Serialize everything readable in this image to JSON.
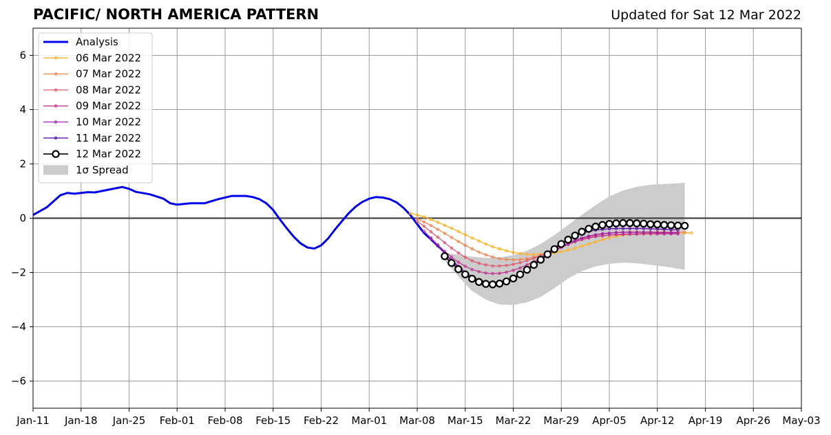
{
  "header": {
    "title": "PACIFIC/ NORTH AMERICA PATTERN",
    "updated": "Updated for Sat 12 Mar 2022"
  },
  "chart_data": {
    "type": "line",
    "title": "PACIFIC/ NORTH AMERICA PATTERN",
    "subtitle": "Updated for Sat 12 Mar 2022",
    "xlabel": "",
    "ylabel": "",
    "x_axis": {
      "type": "date",
      "start": "2022-01-11",
      "end": "2022-05-03",
      "ticks": [
        "Jan-11",
        "Jan-18",
        "Jan-25",
        "Feb-01",
        "Feb-08",
        "Feb-15",
        "Feb-22",
        "Mar-01",
        "Mar-08",
        "Mar-15",
        "Mar-22",
        "Mar-29",
        "Apr-05",
        "Apr-12",
        "Apr-19",
        "Apr-26",
        "May-03"
      ]
    },
    "ylim": [
      -7,
      7
    ],
    "yticks": [
      -6,
      -4,
      -2,
      0,
      2,
      4,
      6
    ],
    "ytick_labels": [
      "−6",
      "−4",
      "−2",
      "0",
      "2",
      "4",
      "6"
    ],
    "grid": true,
    "zero_line": true,
    "legend_position": "top-left",
    "colors": {
      "analysis": "#0000ee",
      "spread": "#cccccc",
      "grid": "#999999"
    },
    "analysis": {
      "name": "Analysis",
      "dates": [
        "2022-01-11",
        "2022-01-13",
        "2022-01-15",
        "2022-01-16",
        "2022-01-17",
        "2022-01-18",
        "2022-01-19",
        "2022-01-20",
        "2022-01-22",
        "2022-01-24",
        "2022-01-25",
        "2022-01-26",
        "2022-01-28",
        "2022-01-30",
        "2022-01-31",
        "2022-02-01",
        "2022-02-03",
        "2022-02-05",
        "2022-02-07",
        "2022-02-09",
        "2022-02-11",
        "2022-02-12",
        "2022-02-13",
        "2022-02-14",
        "2022-02-15",
        "2022-02-16",
        "2022-02-17",
        "2022-02-18",
        "2022-02-19",
        "2022-02-20",
        "2022-02-21",
        "2022-02-22",
        "2022-02-23",
        "2022-02-24",
        "2022-02-25",
        "2022-02-26",
        "2022-02-27",
        "2022-02-28",
        "2022-03-01",
        "2022-03-02",
        "2022-03-03",
        "2022-03-04",
        "2022-03-05",
        "2022-03-06",
        "2022-03-07",
        "2022-03-08",
        "2022-03-09",
        "2022-03-10",
        "2022-03-11",
        "2022-03-12"
      ],
      "values": [
        0.12,
        0.4,
        0.85,
        0.93,
        0.9,
        0.93,
        0.96,
        0.95,
        1.05,
        1.15,
        1.08,
        0.97,
        0.88,
        0.72,
        0.55,
        0.5,
        0.55,
        0.55,
        0.7,
        0.82,
        0.82,
        0.78,
        0.7,
        0.55,
        0.3,
        -0.05,
        -0.38,
        -0.68,
        -0.93,
        -1.08,
        -1.12,
        -1.0,
        -0.75,
        -0.42,
        -0.12,
        0.18,
        0.42,
        0.6,
        0.72,
        0.78,
        0.76,
        0.7,
        0.58,
        0.38,
        0.12,
        -0.22,
        -0.55,
        -0.78,
        -1.02,
        -1.25
      ]
    },
    "forecasts": [
      {
        "name": "06 Mar 2022",
        "color": "#ffb320",
        "start": "2022-03-07",
        "values": [
          0.18,
          0.12,
          0.05,
          -0.05,
          -0.15,
          -0.26,
          -0.37,
          -0.49,
          -0.61,
          -0.73,
          -0.84,
          -0.95,
          -1.05,
          -1.13,
          -1.2,
          -1.26,
          -1.3,
          -1.33,
          -1.34,
          -1.33,
          -1.31,
          -1.28,
          -1.24,
          -1.18,
          -1.11,
          -1.03,
          -0.95,
          -0.87,
          -0.79,
          -0.72,
          -0.67,
          -0.62,
          -0.59,
          -0.57,
          -0.56,
          -0.55,
          -0.55,
          -0.55,
          -0.54,
          -0.54,
          -0.54,
          -0.54
        ]
      },
      {
        "name": "07 Mar 2022",
        "color": "#f08550",
        "start": "2022-03-08",
        "values": [
          -0.02,
          -0.14,
          -0.27,
          -0.41,
          -0.56,
          -0.71,
          -0.86,
          -1.0,
          -1.13,
          -1.25,
          -1.35,
          -1.43,
          -1.49,
          -1.52,
          -1.53,
          -1.52,
          -1.49,
          -1.44,
          -1.37,
          -1.28,
          -1.18,
          -1.07,
          -0.96,
          -0.86,
          -0.77,
          -0.69,
          -0.63,
          -0.58,
          -0.55,
          -0.53,
          -0.52,
          -0.51,
          -0.51,
          -0.51,
          -0.51,
          -0.51,
          -0.51,
          -0.52,
          -0.52,
          -0.52
        ]
      },
      {
        "name": "08 Mar 2022",
        "color": "#e05a6f",
        "start": "2022-03-08",
        "values": [
          -0.12,
          -0.3,
          -0.5,
          -0.7,
          -0.9,
          -1.1,
          -1.28,
          -1.44,
          -1.57,
          -1.66,
          -1.72,
          -1.76,
          -1.76,
          -1.74,
          -1.7,
          -1.64,
          -1.56,
          -1.47,
          -1.37,
          -1.26,
          -1.15,
          -1.04,
          -0.94,
          -0.85,
          -0.78,
          -0.72,
          -0.67,
          -0.64,
          -0.62,
          -0.6,
          -0.59,
          -0.58,
          -0.58,
          -0.57,
          -0.57,
          -0.56,
          -0.56,
          -0.56,
          -0.56
        ]
      },
      {
        "name": "09 Mar 2022",
        "color": "#c0398e",
        "start": "2022-03-09",
        "values": [
          -0.48,
          -0.73,
          -0.98,
          -1.22,
          -1.43,
          -1.62,
          -1.77,
          -1.89,
          -1.97,
          -2.02,
          -2.04,
          -2.03,
          -1.99,
          -1.92,
          -1.83,
          -1.72,
          -1.6,
          -1.47,
          -1.34,
          -1.21,
          -1.08,
          -0.97,
          -0.87,
          -0.79,
          -0.73,
          -0.68,
          -0.65,
          -0.62,
          -0.61,
          -0.6,
          -0.59,
          -0.59,
          -0.58,
          -0.58,
          -0.58,
          -0.58,
          -0.58,
          -0.58
        ]
      },
      {
        "name": "10 Mar 2022",
        "color": "#9b1cb0",
        "start": "2022-03-10",
        "values": [
          -0.75,
          -1.02,
          -1.29,
          -1.54,
          -1.77,
          -1.98,
          -2.15,
          -2.27,
          -2.34,
          -2.37,
          -2.35,
          -2.29,
          -2.19,
          -2.06,
          -1.9,
          -1.73,
          -1.55,
          -1.37,
          -1.2,
          -1.05,
          -0.92,
          -0.82,
          -0.73,
          -0.66,
          -0.61,
          -0.57,
          -0.55,
          -0.53,
          -0.52,
          -0.52,
          -0.52,
          -0.52,
          -0.52,
          -0.53,
          -0.53,
          -0.53,
          -0.53
        ]
      },
      {
        "name": "11 Mar 2022",
        "color": "#5a12a8",
        "start": "2022-03-11",
        "values": [
          -1.02,
          -1.3,
          -1.57,
          -1.82,
          -2.04,
          -2.22,
          -2.35,
          -2.42,
          -2.44,
          -2.41,
          -2.33,
          -2.21,
          -2.06,
          -1.88,
          -1.68,
          -1.47,
          -1.27,
          -1.08,
          -0.91,
          -0.77,
          -0.65,
          -0.56,
          -0.49,
          -0.44,
          -0.41,
          -0.39,
          -0.38,
          -0.38,
          -0.38,
          -0.38,
          -0.38,
          -0.39,
          -0.4,
          -0.41,
          -0.42,
          -0.43
        ]
      },
      {
        "name": "12 Mar 2022",
        "color": "#000000",
        "start": "2022-03-12",
        "values": [
          -1.4,
          -1.65,
          -1.88,
          -2.07,
          -2.23,
          -2.35,
          -2.42,
          -2.44,
          -2.41,
          -2.33,
          -2.22,
          -2.07,
          -1.9,
          -1.72,
          -1.53,
          -1.33,
          -1.14,
          -0.95,
          -0.79,
          -0.64,
          -0.5,
          -0.39,
          -0.31,
          -0.25,
          -0.21,
          -0.19,
          -0.18,
          -0.18,
          -0.19,
          -0.2,
          -0.22,
          -0.23,
          -0.25,
          -0.26,
          -0.27,
          -0.28
        ]
      }
    ],
    "spread": {
      "name": "1σ Spread",
      "dates": [
        "2022-03-12",
        "2022-03-14",
        "2022-03-16",
        "2022-03-18",
        "2022-03-20",
        "2022-03-22",
        "2022-03-24",
        "2022-03-26",
        "2022-03-28",
        "2022-03-30",
        "2022-04-01",
        "2022-04-03",
        "2022-04-05",
        "2022-04-07",
        "2022-04-09",
        "2022-04-11",
        "2022-04-13",
        "2022-04-16"
      ],
      "upper": [
        -1.28,
        -1.35,
        -1.42,
        -1.46,
        -1.45,
        -1.36,
        -1.2,
        -0.95,
        -0.62,
        -0.25,
        0.12,
        0.48,
        0.8,
        1.02,
        1.16,
        1.23,
        1.26,
        1.3
      ],
      "lower": [
        -1.55,
        -2.15,
        -2.68,
        -3.0,
        -3.18,
        -3.2,
        -3.1,
        -2.9,
        -2.58,
        -2.22,
        -1.95,
        -1.78,
        -1.68,
        -1.64,
        -1.66,
        -1.72,
        -1.78,
        -1.9
      ]
    },
    "legend": [
      {
        "label": "Analysis",
        "key": "analysis"
      },
      {
        "label": "06 Mar 2022",
        "key": "f0"
      },
      {
        "label": "07 Mar 2022",
        "key": "f1"
      },
      {
        "label": "08 Mar 2022",
        "key": "f2"
      },
      {
        "label": "09 Mar 2022",
        "key": "f3"
      },
      {
        "label": "10 Mar 2022",
        "key": "f4"
      },
      {
        "label": "11 Mar 2022",
        "key": "f5"
      },
      {
        "label": "12 Mar 2022",
        "key": "f6"
      },
      {
        "label": "1σ Spread",
        "key": "spread"
      }
    ]
  }
}
